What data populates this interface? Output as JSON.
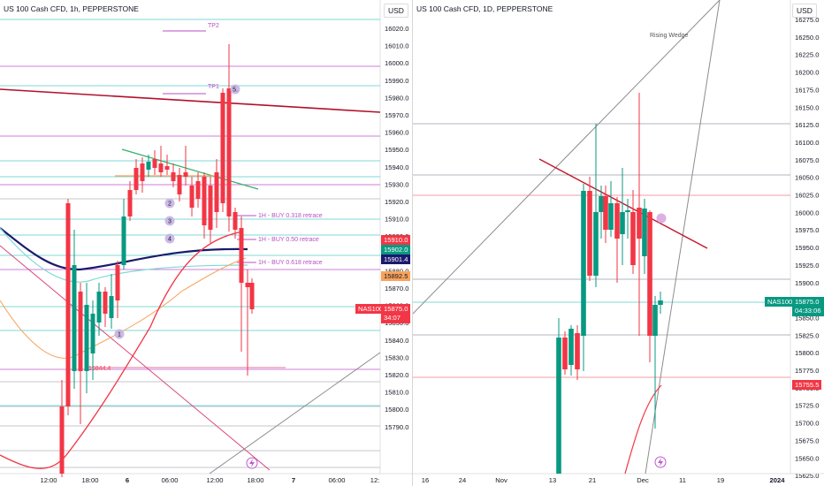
{
  "left": {
    "title": "US 100 Cash CFD, 1h, PEPPERSTONE",
    "currency": "USD",
    "price_ticks": [
      "16020.0",
      "16010.0",
      "16000.0",
      "15990.0",
      "15980.0",
      "15970.0",
      "15960.0",
      "15950.0",
      "15940.0",
      "15930.0",
      "15920.0",
      "15910.0",
      "15900.0",
      "15890.0",
      "15880.0",
      "15870.0",
      "15860.0",
      "15850.0",
      "15840.0",
      "15830.0",
      "15820.0",
      "15810.0",
      "15800.0",
      "15790.0"
    ],
    "time_ticks": [
      "12:00",
      "18:00",
      "6",
      "06:00",
      "12:00",
      "18:00",
      "7",
      "06:00",
      "12:"
    ],
    "badges": {
      "red1": "15910.0",
      "green": "15902.0",
      "navy": "15901.4",
      "orange": "15892.5",
      "symbol": "NAS100",
      "last_price": "15875.0",
      "countdown": "34:07"
    },
    "annotations": {
      "tp2": "TP2",
      "tp1": "TP1",
      "n5": "5.",
      "n2": "2",
      "n3": "3",
      "n4": "4",
      "n1": "1",
      "buy318": "1H - BUY 0.318 retrace",
      "buy50": "1H - BUY 0.50 retrace",
      "buy618": "1H - BUY 0.618 retrace",
      "low_label": "15844.4"
    }
  },
  "right": {
    "title": "US 100 Cash CFD, 1D, PEPPERSTONE",
    "currency": "USD",
    "price_ticks": [
      "16275.0",
      "16250.0",
      "16225.0",
      "16200.0",
      "16175.0",
      "16150.0",
      "16125.0",
      "16100.0",
      "16075.0",
      "16050.0",
      "16025.0",
      "16000.0",
      "15975.0",
      "15950.0",
      "15925.0",
      "15900.0",
      "15875.0",
      "15850.0",
      "15825.0",
      "15800.0",
      "15775.0",
      "15750.0",
      "15725.0",
      "15700.0",
      "15675.0",
      "15650.0",
      "15625.0"
    ],
    "time_ticks": [
      "16",
      "24",
      "Nov",
      "13",
      "21",
      "Dec",
      "11",
      "19",
      "2024"
    ],
    "badges": {
      "symbol": "NAS100",
      "last_price": "15875.0",
      "countdown": "04:33:06",
      "red": "15755.5"
    },
    "annotations": {
      "rising_wedge": "Rising Wedge"
    }
  },
  "colors": {
    "bull": "#089981",
    "bear": "#f23645",
    "magenta": "#d27cdb",
    "cyan": "#7fd9d6",
    "navy": "#1a1a6e",
    "ema_red": "#f23645",
    "ema_orange": "#f7a35c"
  },
  "icons": [
    "lightning-icon",
    "lightning-icon"
  ]
}
